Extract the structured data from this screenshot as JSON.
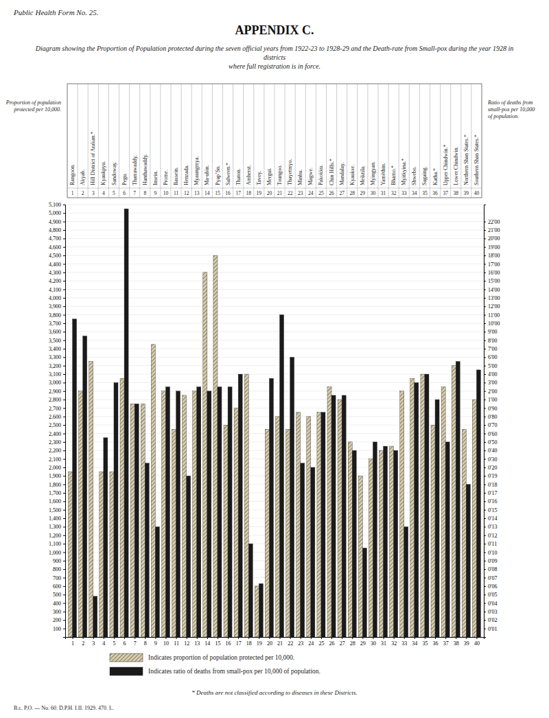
{
  "chart_data": {
    "type": "bar",
    "title": "APPENDIX C.",
    "subtitle": "Diagram showing the Proportion of Population protected during the seven official years from 1922-23 to 1928-29 and the Death-rate from Small-pox during the year 1928 in districts\nwhere full registration is in force.",
    "annotations": [
      "Public Health Form No. 25.",
      "B.c. P.O. — No. 60. D.P.H. I.II. 1929. 470. L.",
      "* Deaths are not classified according to diseases in these Districts."
    ],
    "ylabel": "Proportion of population\nprotected per 10,000.",
    "y2label": "Ratio of deaths from\nsmall-pox per 10,000\nof population.",
    "categories": [
      "Rangoon.",
      "Akyab.",
      "Hill District of Arakan.*",
      "Kyaukpyu.",
      "Sandoway.",
      "Pegu.",
      "Tharrawaddy.",
      "Hanthawaddy.",
      "Insein.",
      "Prome.",
      "Bassein.",
      "Henzada.",
      "Myaungmya.",
      "Ma-ubin.",
      "PyapʼSn.",
      "Salween.*",
      "Thaton.",
      "Amherst.",
      "Tavoy.",
      "Mergui.",
      "Toungoo.",
      "Thayetmyo.",
      "Minbu.",
      "Magwe.",
      "Pakokku.",
      "Chin Hills.*",
      "Mandalay.",
      "Kyaukse.",
      "Meiktila.",
      "Myingyan.",
      "Yamèthin.",
      "Bhamo.*",
      "Myitkyina.*",
      "Shwebo.",
      "Sagaing.",
      "Katha.*",
      "Upper Chindwin.*",
      "Lower Chindwin.",
      "Northern Shan States.*",
      "Southern Shan States.*"
    ],
    "x": [
      1,
      2,
      3,
      4,
      5,
      6,
      7,
      8,
      9,
      10,
      11,
      12,
      13,
      14,
      15,
      16,
      17,
      18,
      19,
      20,
      21,
      22,
      23,
      24,
      25,
      26,
      27,
      28,
      29,
      30,
      31,
      32,
      33,
      34,
      35,
      36,
      37,
      38,
      39,
      40
    ],
    "xlim": [
      0.3,
      40.7
    ],
    "xticks": [
      1,
      2,
      3,
      4,
      5,
      6,
      7,
      8,
      9,
      10,
      11,
      12,
      13,
      14,
      15,
      16,
      17,
      18,
      19,
      20,
      21,
      22,
      23,
      24,
      25,
      26,
      27,
      28,
      29,
      30,
      31,
      32,
      33,
      34,
      35,
      36,
      37,
      38,
      39,
      40
    ],
    "series": [
      {
        "name": "Indicates proportion of population protected per 10,000.",
        "color": "#d8ccaa",
        "values": [
          1950,
          2900,
          3250,
          1950,
          1950,
          3050,
          2750,
          2750,
          3450,
          2900,
          2450,
          2850,
          2900,
          4300,
          4500,
          2500,
          2700,
          3100,
          600,
          2450,
          2600,
          2450,
          2650,
          2600,
          2650,
          2950,
          2800,
          2300,
          1900,
          2100,
          2200,
          2250,
          2900,
          3050,
          3100,
          2500,
          2950,
          3200,
          2450,
          2800
        ]
      },
      {
        "name": "Indicates ratio of deaths from small-pox per 10,000 of population.",
        "color": "#1a1a1a",
        "values": [
          3750,
          3550,
          480,
          2350,
          3000,
          5050,
          2750,
          2050,
          1300,
          2950,
          2900,
          1900,
          2950,
          2900,
          2950,
          2950,
          3100,
          1100,
          630,
          3050,
          3800,
          3300,
          2050,
          2000,
          2650,
          2850,
          2850,
          2200,
          1050,
          2300,
          2250,
          2200,
          1300,
          3000,
          3100,
          2800,
          2300,
          3250,
          1800,
          3150
        ]
      }
    ],
    "ylim": [
      0,
      5100
    ],
    "yticks": [
      100,
      200,
      300,
      400,
      500,
      600,
      700,
      800,
      900,
      {
        "value": 1000,
        "label": "1,000"
      },
      {
        "value": 1100,
        "label": "1,100"
      },
      {
        "value": 1200,
        "label": "1,200"
      },
      {
        "value": 1300,
        "label": "1,300"
      },
      {
        "value": 1400,
        "label": "1,400"
      },
      {
        "value": 1500,
        "label": "1,500"
      },
      {
        "value": 1600,
        "label": "1,600"
      },
      {
        "value": 1700,
        "label": "1,700"
      },
      {
        "value": 1800,
        "label": "1,800"
      },
      {
        "value": 1900,
        "label": "1,900"
      },
      {
        "value": 2000,
        "label": "2,000"
      },
      {
        "value": 2100,
        "label": "2,100"
      },
      {
        "value": 2200,
        "label": "2,200"
      },
      {
        "value": 2300,
        "label": "2,300"
      },
      {
        "value": 2400,
        "label": "2,400"
      },
      {
        "value": 2500,
        "label": "2,500"
      },
      {
        "value": 2600,
        "label": "2,600"
      },
      {
        "value": 2700,
        "label": "2,700"
      },
      {
        "value": 2800,
        "label": "2,800"
      },
      {
        "value": 2900,
        "label": "2,900"
      },
      {
        "value": 3000,
        "label": "3,000"
      },
      {
        "value": 3100,
        "label": "3,100"
      },
      {
        "value": 3200,
        "label": "3,200"
      },
      {
        "value": 3300,
        "label": "3,300"
      },
      {
        "value": 3400,
        "label": "3,400"
      },
      {
        "value": 3500,
        "label": "3,500"
      },
      {
        "value": 3600,
        "label": "3,600"
      },
      {
        "value": 3700,
        "label": "3,700"
      },
      {
        "value": 3800,
        "label": "3,800"
      },
      {
        "value": 3900,
        "label": "3,900"
      },
      {
        "value": 4000,
        "label": "4,000"
      },
      {
        "value": 4100,
        "label": "4,100"
      },
      {
        "value": 4200,
        "label": "4,200"
      },
      {
        "value": 4300,
        "label": "4,300"
      },
      {
        "value": 4400,
        "label": "4,400"
      },
      {
        "value": 4500,
        "label": "4,500"
      },
      {
        "value": 4600,
        "label": "4,600"
      },
      {
        "value": 4700,
        "label": "4,700"
      },
      {
        "value": 4800,
        "label": "4,800"
      },
      {
        "value": 4900,
        "label": "4,900"
      },
      {
        "value": 5000,
        "label": "5,000"
      },
      {
        "value": 5100,
        "label": "5,100"
      }
    ],
    "y2lim": [
      0,
      22.8979591837
    ],
    "y2ticks": [
      {
        "value": 0.4489795918,
        "label": "0'01"
      },
      {
        "value": 0.8979591837,
        "label": "0'02"
      },
      {
        "value": 1.3469387755,
        "label": "0'03"
      },
      {
        "value": 1.7959183673,
        "label": "0'04"
      },
      {
        "value": 2.2448979592,
        "label": "0'05"
      },
      {
        "value": 2.693877551,
        "label": "0'06"
      },
      {
        "value": 3.1428571429,
        "label": "0'07"
      },
      {
        "value": 3.5918367347,
        "label": "0'08"
      },
      {
        "value": 4.0408163265,
        "label": "0'09"
      },
      {
        "value": 4.4897959184,
        "label": "0'10"
      },
      {
        "value": 4.9387755102,
        "label": "0'11"
      },
      {
        "value": 5.387755102,
        "label": "0'12"
      },
      {
        "value": 5.8367346939,
        "label": "0'13"
      },
      {
        "value": 6.2857142857,
        "label": "0'14"
      },
      {
        "value": 6.7346938776,
        "label": "0'15"
      },
      {
        "value": 7.1836734694,
        "label": "0'16"
      },
      {
        "value": 7.6326530612,
        "label": "0'17"
      },
      {
        "value": 8.0816326531,
        "label": "0'18"
      },
      {
        "value": 8.5306122449,
        "label": "0'19"
      },
      {
        "value": 8.9795918367,
        "label": "0'20"
      },
      {
        "value": 9.4285714286,
        "label": "0'30"
      },
      {
        "value": 9.8775510204,
        "label": "0'40"
      },
      {
        "value": 10.3265306122,
        "label": "0'50"
      },
      {
        "value": 10.7755102041,
        "label": "0'60"
      },
      {
        "value": 11.2244897959,
        "label": "0'70"
      },
      {
        "value": 11.6734693878,
        "label": "0'80"
      },
      {
        "value": 12.1224489796,
        "label": "0'90"
      },
      {
        "value": 12.5714285714,
        "label": "1'00"
      },
      {
        "value": 13.0204081633,
        "label": "2'00"
      },
      {
        "value": 13.4693877551,
        "label": "3'00"
      },
      {
        "value": 13.9183673469,
        "label": "4'00"
      },
      {
        "value": 14.3673469388,
        "label": "5'00"
      },
      {
        "value": 14.8163265306,
        "label": "6'00"
      },
      {
        "value": 15.2653061224,
        "label": "7'00"
      },
      {
        "value": 15.7142857143,
        "label": "8'00"
      },
      {
        "value": 16.1632653061,
        "label": "9'00"
      },
      {
        "value": 16.612244898,
        "label": "10'00"
      },
      {
        "value": 17.0612244898,
        "label": "11'00"
      },
      {
        "value": 17.5102040816,
        "label": "12'00"
      },
      {
        "value": 17.9591836735,
        "label": "13'00"
      },
      {
        "value": 18.4081632653,
        "label": "14'00"
      },
      {
        "value": 18.8571428571,
        "label": "15'00"
      },
      {
        "value": 19.306122449,
        "label": "16'00"
      },
      {
        "value": 19.7551020408,
        "label": "17'00"
      },
      {
        "value": 20.2040816327,
        "label": "18'00"
      },
      {
        "value": 20.6530612245,
        "label": "19'00"
      },
      {
        "value": 21.1020408163,
        "label": "20'00"
      },
      {
        "value": 21.5510204082,
        "label": "21'00"
      },
      {
        "value": 22,
        "label": "22'00"
      }
    ],
    "grid": true,
    "legend": "bottom"
  }
}
